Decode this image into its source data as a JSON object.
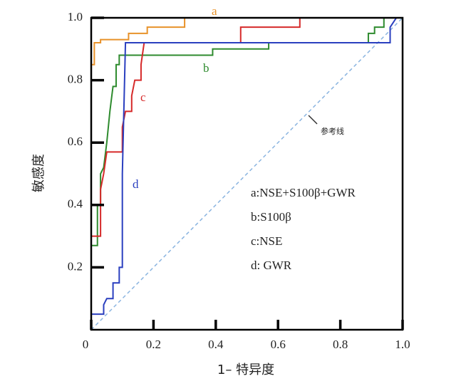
{
  "chart_data": {
    "type": "line",
    "x_label": "1– 特异度",
    "y_label": "敏感度",
    "xlim": [
      0,
      1
    ],
    "ylim": [
      0,
      1
    ],
    "xticks": [
      0,
      0.2,
      0.4,
      0.6,
      0.8,
      {
        "value": 1,
        "label": "1.0"
      }
    ],
    "yticks": [
      0.2,
      0.4,
      0.6,
      0.8,
      {
        "value": 1,
        "label": "1.0"
      }
    ],
    "series": [
      {
        "name": "a",
        "color": "#e8922a",
        "x": [
          0,
          0,
          0.01,
          0.01,
          0.03,
          0.03,
          0.12,
          0.12,
          0.18,
          0.18,
          0.3,
          0.3,
          1
        ],
        "values": [
          0,
          0.85,
          0.85,
          0.92,
          0.92,
          0.93,
          0.93,
          0.95,
          0.95,
          0.97,
          0.97,
          1,
          1
        ]
      },
      {
        "name": "b",
        "color": "#2e8b2e",
        "x": [
          0,
          0.02,
          0.02,
          0.03,
          0.03,
          0.04,
          0.05,
          0.06,
          0.07,
          0.08,
          0.08,
          0.09,
          0.09,
          0.39,
          0.39,
          0.57,
          0.57,
          0.89,
          0.89,
          0.91,
          0.91,
          0.94,
          0.94,
          1
        ],
        "values": [
          0.27,
          0.27,
          0.4,
          0.4,
          0.5,
          0.52,
          0.6,
          0.7,
          0.78,
          0.78,
          0.85,
          0.85,
          0.88,
          0.88,
          0.9,
          0.9,
          0.92,
          0.92,
          0.95,
          0.95,
          0.97,
          0.97,
          1,
          1
        ]
      },
      {
        "name": "c",
        "color": "#d62a2a",
        "x": [
          0,
          0.03,
          0.03,
          0.04,
          0.05,
          0.1,
          0.1,
          0.11,
          0.13,
          0.13,
          0.14,
          0.16,
          0.16,
          0.17,
          0.48,
          0.48,
          0.67,
          0.67,
          1
        ],
        "values": [
          0.3,
          0.3,
          0.45,
          0.5,
          0.57,
          0.57,
          0.65,
          0.7,
          0.7,
          0.75,
          0.8,
          0.8,
          0.85,
          0.92,
          0.92,
          0.97,
          0.97,
          1,
          1
        ]
      },
      {
        "name": "d",
        "color": "#2a3fbf",
        "x": [
          0,
          0,
          0.04,
          0.04,
          0.05,
          0.07,
          0.07,
          0.09,
          0.09,
          0.1,
          0.1,
          0.11,
          0.96,
          0.96,
          0.98,
          1
        ],
        "values": [
          0.02,
          0.05,
          0.05,
          0.08,
          0.1,
          0.1,
          0.15,
          0.15,
          0.2,
          0.2,
          0.5,
          0.92,
          0.92,
          0.97,
          1,
          1
        ]
      }
    ],
    "legend": [
      "a:NSE+S100β+GWR",
      "b:S100β",
      "c:NSE",
      "d: GWR"
    ],
    "reference_label": "参考线",
    "reference_color": "#8ab4e0"
  }
}
